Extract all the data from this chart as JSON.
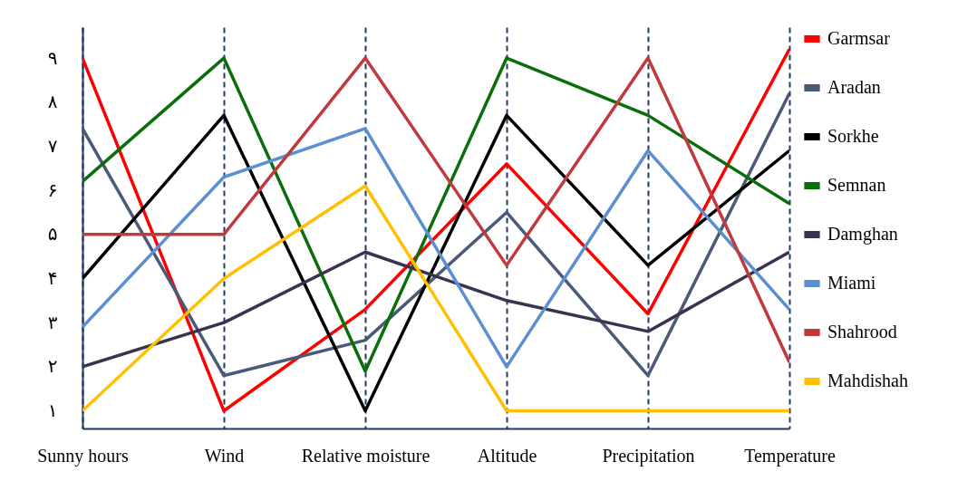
{
  "chart_data": {
    "type": "line",
    "categories": [
      "Sunny hours",
      "Wind",
      "Relative moisture",
      "Altitude",
      "Precipitation",
      "Temperature"
    ],
    "series": [
      {
        "name": "Garmsar",
        "color": "#ff0000",
        "values": [
          9,
          1,
          3.3,
          6.6,
          3.2,
          9.2
        ]
      },
      {
        "name": "Aradan",
        "color": "#4a5a78",
        "values": [
          7.4,
          1.8,
          2.6,
          5.5,
          1.8,
          8.2
        ]
      },
      {
        "name": "Sorkhe",
        "color": "#000000",
        "values": [
          4.0,
          7.7,
          1,
          7.7,
          4.3,
          6.9
        ]
      },
      {
        "name": "Semnan",
        "color": "#0a6e0a",
        "values": [
          6.2,
          9,
          1.9,
          9,
          7.7,
          5.7
        ]
      },
      {
        "name": "Damghan",
        "color": "#3a3350",
        "values": [
          2.0,
          3.0,
          4.6,
          3.5,
          2.8,
          4.6
        ]
      },
      {
        "name": "Miami",
        "color": "#5b8fd0",
        "values": [
          2.9,
          6.3,
          7.4,
          2.0,
          6.9,
          3.3
        ]
      },
      {
        "name": "Shahrood",
        "color": "#c0393b",
        "values": [
          5.0,
          5.0,
          9,
          4.3,
          9,
          2.1
        ]
      },
      {
        "name": "Mahdishah",
        "color": "#ffc000",
        "values": [
          1,
          4.0,
          6.1,
          1,
          1,
          1
        ]
      }
    ],
    "ylim": [
      0.6,
      9.7
    ],
    "yticks": [
      {
        "value": 1,
        "label": "۱"
      },
      {
        "value": 2,
        "label": "۲"
      },
      {
        "value": 3,
        "label": "۳"
      },
      {
        "value": 4,
        "label": "۴"
      },
      {
        "value": 5,
        "label": "۵"
      },
      {
        "value": 6,
        "label": "۶"
      },
      {
        "value": 7,
        "label": "۷"
      },
      {
        "value": 8,
        "label": "۸"
      },
      {
        "value": 9,
        "label": "۹"
      }
    ],
    "grid": "x",
    "legend": "right",
    "line_style": "solid",
    "marker": "none"
  }
}
